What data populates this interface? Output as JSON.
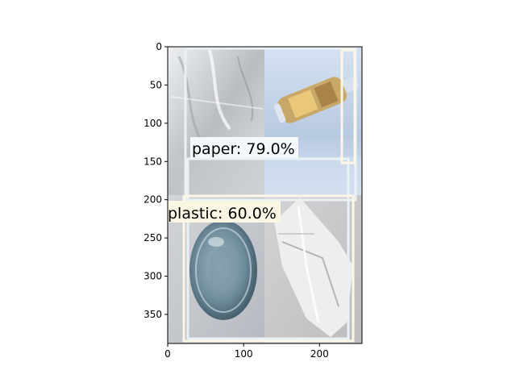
{
  "axes": {
    "x_ticks": [
      {
        "value": 0,
        "label": "0"
      },
      {
        "value": 100,
        "label": "100"
      },
      {
        "value": 200,
        "label": "200"
      }
    ],
    "y_ticks": [
      {
        "value": 0,
        "label": "0"
      },
      {
        "value": 50,
        "label": "50"
      },
      {
        "value": 100,
        "label": "100"
      },
      {
        "value": 150,
        "label": "150"
      },
      {
        "value": 200,
        "label": "200"
      },
      {
        "value": 250,
        "label": "250"
      },
      {
        "value": 300,
        "label": "300"
      },
      {
        "value": 350,
        "label": "350"
      }
    ],
    "xlim": [
      0,
      256
    ],
    "ylim": [
      0,
      388
    ]
  },
  "tiles": [
    {
      "name": "clear-plastic-sheet",
      "colors": [
        "#e6e8ea",
        "#aeb2b5",
        "#d7d9dc"
      ]
    },
    {
      "name": "plastic-bottle-on-blue",
      "colors": [
        "#cbd9ee",
        "#92a9c8",
        "#dfe8f4"
      ]
    },
    {
      "name": "metal-lid",
      "colors": [
        "#c9ccd1",
        "#8c96a0",
        "#d6d8db"
      ]
    },
    {
      "name": "crumpled-plastic-film",
      "colors": [
        "#cfd0d2",
        "#eeeeee",
        "#a9aaac"
      ]
    }
  ],
  "detections": [
    {
      "label": "paper: 79.0%",
      "box_color": "#e9f1f4",
      "label_bg": "#f4f8fa"
    },
    {
      "label": "plastic: 60.0%",
      "box_color": "#fbf7e6",
      "label_bg": "#fbf6e3"
    }
  ]
}
